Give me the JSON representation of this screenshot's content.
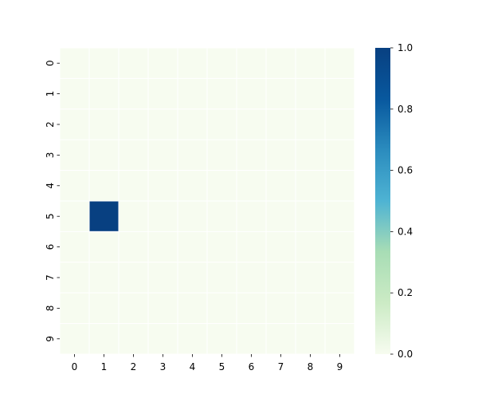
{
  "chart_data": {
    "type": "heatmap",
    "title": "",
    "xlabel": "",
    "ylabel": "",
    "x_ticks": [
      "0",
      "1",
      "2",
      "3",
      "4",
      "5",
      "6",
      "7",
      "8",
      "9"
    ],
    "y_ticks": [
      "0",
      "1",
      "2",
      "3",
      "4",
      "5",
      "6",
      "7",
      "8",
      "9"
    ],
    "values": [
      [
        0,
        0,
        0,
        0,
        0,
        0,
        0,
        0,
        0,
        0
      ],
      [
        0,
        0,
        0,
        0,
        0,
        0,
        0,
        0,
        0,
        0
      ],
      [
        0,
        0,
        0,
        0,
        0,
        0,
        0,
        0,
        0,
        0
      ],
      [
        0,
        0,
        0,
        0,
        0,
        0,
        0,
        0,
        0,
        0
      ],
      [
        0,
        0,
        0,
        0,
        0,
        0,
        0,
        0,
        0,
        0
      ],
      [
        0,
        1,
        0,
        0,
        0,
        0,
        0,
        0,
        0,
        0
      ],
      [
        0,
        0,
        0,
        0,
        0,
        0,
        0,
        0,
        0,
        0
      ],
      [
        0,
        0,
        0,
        0,
        0,
        0,
        0,
        0,
        0,
        0
      ],
      [
        0,
        0,
        0,
        0,
        0,
        0,
        0,
        0,
        0,
        0
      ],
      [
        0,
        0,
        0,
        0,
        0,
        0,
        0,
        0,
        0,
        0
      ]
    ],
    "colorscale": "GnBu",
    "vmin": 0.0,
    "vmax": 1.0,
    "colorbar_ticks": [
      "0.0",
      "0.2",
      "0.4",
      "0.6",
      "0.8",
      "1.0"
    ],
    "colorbar_colors": [
      "#f7fcf0",
      "#ccebc5",
      "#a8ddb5",
      "#4eb3d3",
      "#2b8cbe",
      "#08589e",
      "#084081"
    ],
    "cell_border_color": "#ffffff",
    "grid": false,
    "legend": "colorbar-right"
  }
}
